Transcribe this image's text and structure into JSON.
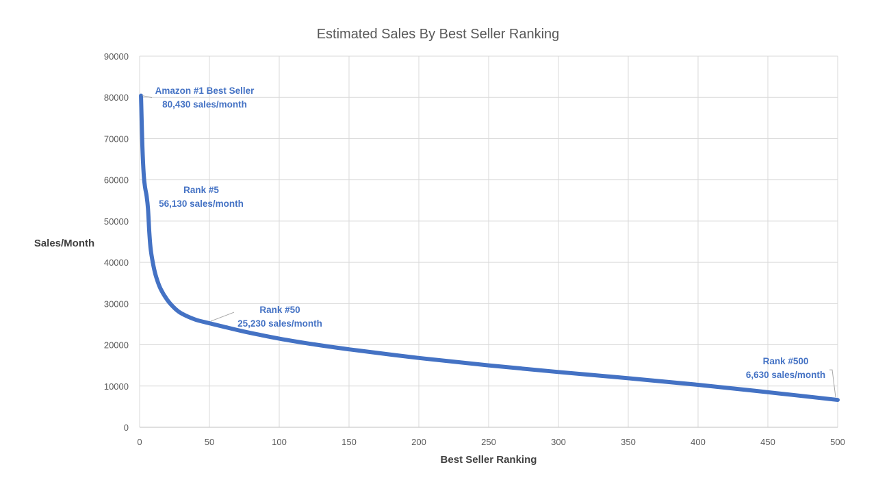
{
  "chart_data": {
    "type": "line",
    "title": "Estimated Sales By Best Seller Ranking",
    "xlabel": "Best Seller Ranking",
    "ylabel": "Sales/Month",
    "xlim": [
      0,
      500
    ],
    "ylim": [
      0,
      90000
    ],
    "xticks": [
      "0",
      "50",
      "100",
      "150",
      "200",
      "250",
      "300",
      "350",
      "400",
      "450",
      "500"
    ],
    "yticks": [
      "0",
      "10000",
      "20000",
      "30000",
      "40000",
      "50000",
      "60000",
      "70000",
      "80000",
      "90000"
    ],
    "grid": true,
    "series": [
      {
        "color": "#4472c4",
        "points": [
          [
            1,
            80430
          ],
          [
            2,
            68000
          ],
          [
            3,
            61000
          ],
          [
            4,
            58000
          ],
          [
            5,
            56130
          ],
          [
            6,
            53000
          ],
          [
            7,
            47000
          ],
          [
            8,
            43000
          ],
          [
            10,
            39000
          ],
          [
            12,
            36300
          ],
          [
            15,
            33600
          ],
          [
            20,
            30800
          ],
          [
            25,
            28900
          ],
          [
            30,
            27600
          ],
          [
            40,
            26100
          ],
          [
            50,
            25230
          ],
          [
            60,
            24400
          ],
          [
            75,
            23200
          ],
          [
            100,
            21500
          ],
          [
            125,
            20100
          ],
          [
            150,
            18900
          ],
          [
            200,
            16800
          ],
          [
            250,
            15000
          ],
          [
            300,
            13400
          ],
          [
            350,
            11900
          ],
          [
            400,
            10300
          ],
          [
            450,
            8500
          ],
          [
            500,
            6630
          ]
        ]
      }
    ],
    "annotations": [
      {
        "x": 1,
        "y": 80430,
        "lines": [
          "Amazon #1 Best Seller",
          "80,430 sales/month"
        ]
      },
      {
        "x": 5,
        "y": 56130,
        "lines": [
          "Rank #5",
          "56,130 sales/month"
        ]
      },
      {
        "x": 50,
        "y": 25230,
        "lines": [
          "Rank #50",
          "25,230 sales/month"
        ]
      },
      {
        "x": 500,
        "y": 6630,
        "lines": [
          "Rank #500",
          "6,630 sales/month"
        ]
      }
    ]
  }
}
